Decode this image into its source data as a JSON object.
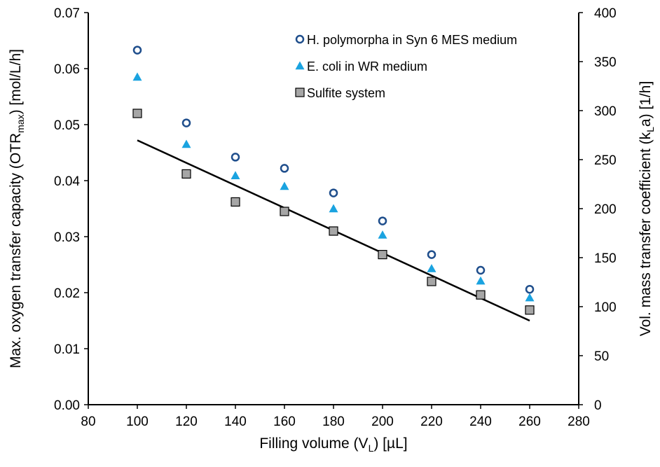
{
  "chart_data": {
    "type": "scatter",
    "x_axis": {
      "label_main": "Filling volume (V",
      "label_sub": "L",
      "label_tail": ")  [µL]",
      "range": [
        80,
        280
      ],
      "ticks": [
        80,
        100,
        120,
        140,
        160,
        180,
        200,
        220,
        240,
        260,
        280
      ]
    },
    "y_axis_left": {
      "label_main": "Max. oxygen transfer capacity (OTR",
      "label_sub": "max",
      "label_tail": ") [mol/L/h]",
      "range": [
        0,
        0.07
      ],
      "ticks": [
        "0.00",
        "0.01",
        "0.02",
        "0.03",
        "0.04",
        "0.05",
        "0.06",
        "0.07"
      ]
    },
    "y_axis_right": {
      "label_main": "Vol. mass transfer coefficient (k",
      "label_sub": "L",
      "label_tail": "a)  [1/h]",
      "range": [
        0,
        400
      ],
      "ticks": [
        "0",
        "50",
        "100",
        "150",
        "200",
        "250",
        "300",
        "350",
        "400"
      ]
    },
    "x": [
      100,
      120,
      140,
      160,
      180,
      200,
      220,
      240,
      260
    ],
    "series": [
      {
        "name": "H. polymorpha in Syn 6 MES medium",
        "marker": "circle-open",
        "color": "#1f4e8c",
        "values": [
          0.0633,
          0.0503,
          0.0442,
          0.0422,
          0.0378,
          0.0328,
          0.0268,
          0.024,
          0.0206
        ]
      },
      {
        "name": "E. coli in WR medium",
        "marker": "triangle",
        "color": "#1aa3e0",
        "values": [
          0.0585,
          0.0465,
          0.0409,
          0.039,
          0.035,
          0.0303,
          0.0243,
          0.0221,
          0.0191
        ]
      },
      {
        "name": "Sulfite system",
        "marker": "square",
        "color": "#a6a6a6",
        "values": [
          0.052,
          0.0412,
          0.0362,
          0.0345,
          0.031,
          0.0268,
          0.022,
          0.0196,
          0.0169
        ]
      }
    ],
    "trendline": {
      "x": [
        100,
        260
      ],
      "y": [
        0.0472,
        0.015
      ],
      "color": "#000000"
    },
    "legend_position": "top-right",
    "grid": false
  }
}
